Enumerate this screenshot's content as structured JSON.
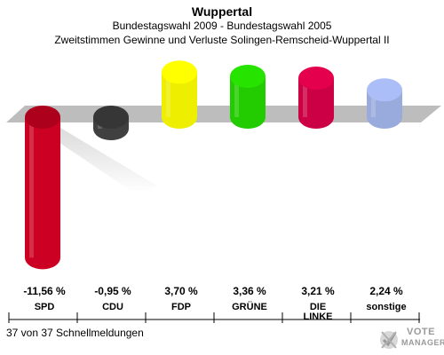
{
  "chart_data": {
    "type": "bar",
    "title": "Wuppertal",
    "subtitle": "Bundestagswahl 2009 - Bundestagswahl 2005",
    "subtitle2": "Zweitstimmen Gewinne und Verluste Solingen-Remscheid-Wuppertal II",
    "categories": [
      "SPD",
      "CDU",
      "FDP",
      "GRÜNE",
      "DIE LINKE",
      "sonstige"
    ],
    "category_lines": [
      [
        "SPD"
      ],
      [
        "CDU"
      ],
      [
        "FDP"
      ],
      [
        "GRÜNE"
      ],
      [
        "DIE",
        "LINKE"
      ],
      [
        "sonstige"
      ]
    ],
    "values": [
      -11.56,
      -0.95,
      3.7,
      3.36,
      3.21,
      2.24
    ],
    "value_labels": [
      "-11,56 %",
      "-0,95 %",
      "3,70 %",
      "3,36 %",
      "3,21 %",
      "2,24 %"
    ],
    "colors": [
      "#cc0022",
      "#404040",
      "#eeee00",
      "#22cc00",
      "#cc0044",
      "#99aadd"
    ],
    "ylim": [
      -11.56,
      3.7
    ]
  },
  "footer": {
    "text": "37 von 37 Schnellmeldungen"
  },
  "logo": {
    "line1": "VOTE",
    "line2": "MANAGER"
  }
}
